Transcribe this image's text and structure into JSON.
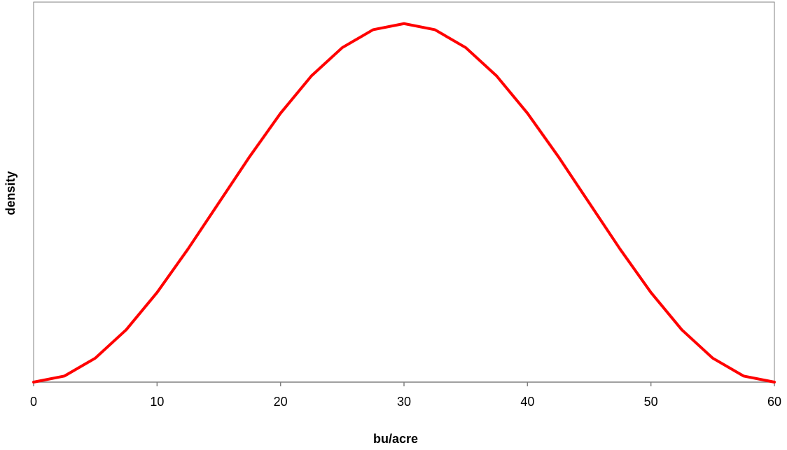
{
  "chart_data": {
    "type": "line",
    "title": "",
    "xlabel": "bu/acre",
    "ylabel": "density",
    "xlim": [
      0,
      60
    ],
    "ylim": [
      0,
      1.06
    ],
    "x_ticks": [
      0,
      10,
      20,
      30,
      40,
      50,
      60
    ],
    "x_tick_labels": [
      "0",
      "10",
      "20",
      "30",
      "40",
      "50",
      "60"
    ],
    "y_tick_labels_shown": false,
    "grid": false,
    "legend": "none",
    "series": [
      {
        "color": "#ff0000",
        "x": [
          0,
          2.5,
          5,
          7.5,
          10,
          12.5,
          15,
          17.5,
          20,
          22.5,
          25,
          27.5,
          30,
          32.5,
          35,
          37.5,
          40,
          42.5,
          45,
          47.5,
          50,
          52.5,
          55,
          57.5,
          60
        ],
        "y": [
          0.0,
          0.017,
          0.067,
          0.146,
          0.25,
          0.371,
          0.5,
          0.629,
          0.75,
          0.854,
          0.933,
          0.983,
          1.0,
          0.983,
          0.933,
          0.854,
          0.75,
          0.629,
          0.5,
          0.371,
          0.25,
          0.146,
          0.067,
          0.017,
          0.0
        ]
      }
    ]
  },
  "colors": {
    "axis": "#808080",
    "frame": "#808080",
    "series": "#ff0000"
  }
}
